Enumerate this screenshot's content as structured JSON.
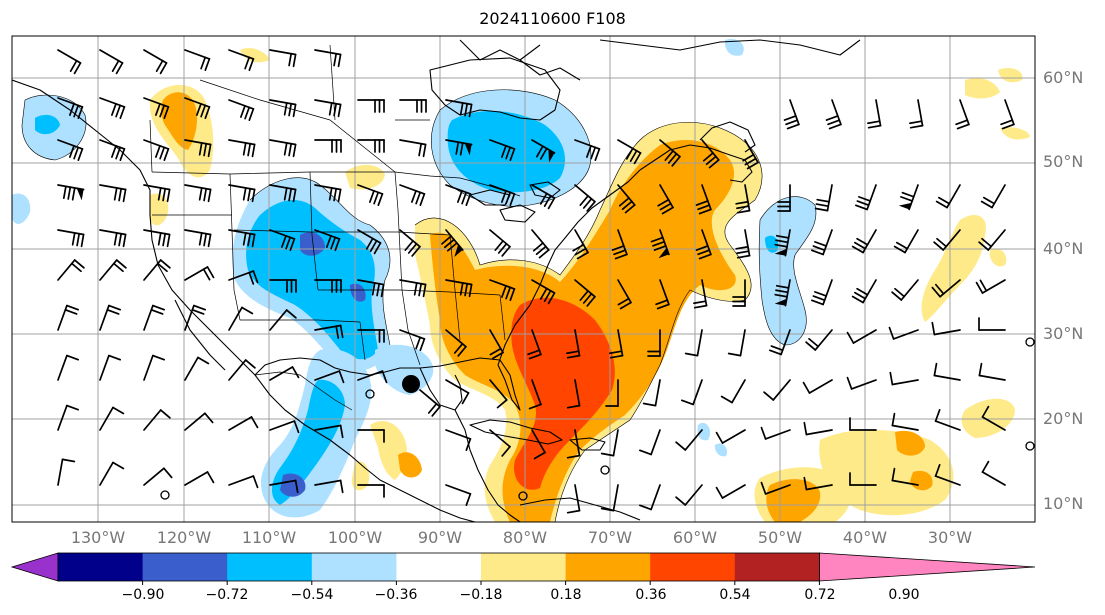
{
  "title": "2024110600 F108",
  "lat_labels": [
    "60°N",
    "50°N",
    "40°N",
    "30°N",
    "20°N",
    "10°N"
  ],
  "lon_labels": [
    "130°W",
    "120°W",
    "110°W",
    "100°W",
    "90°W",
    "80°W",
    "70°W",
    "60°W",
    "50°W",
    "40°W",
    "30°W"
  ],
  "colorbar": {
    "tick_labels": [
      "−0.90",
      "−0.72",
      "−0.54",
      "−0.36",
      "−0.18",
      "0.18",
      "0.36",
      "0.54",
      "0.72",
      "0.90"
    ],
    "colors": [
      "#9932cc",
      "#00008b",
      "#3a5fcd",
      "#00bfff",
      "#aee0ff",
      "#ffffff",
      "#ffea8a",
      "#ffa500",
      "#ff4500",
      "#b22222",
      "#ff85c0"
    ]
  },
  "marker": {
    "label": "storm-center",
    "lon": -93.5,
    "lat": 24.0
  }
}
